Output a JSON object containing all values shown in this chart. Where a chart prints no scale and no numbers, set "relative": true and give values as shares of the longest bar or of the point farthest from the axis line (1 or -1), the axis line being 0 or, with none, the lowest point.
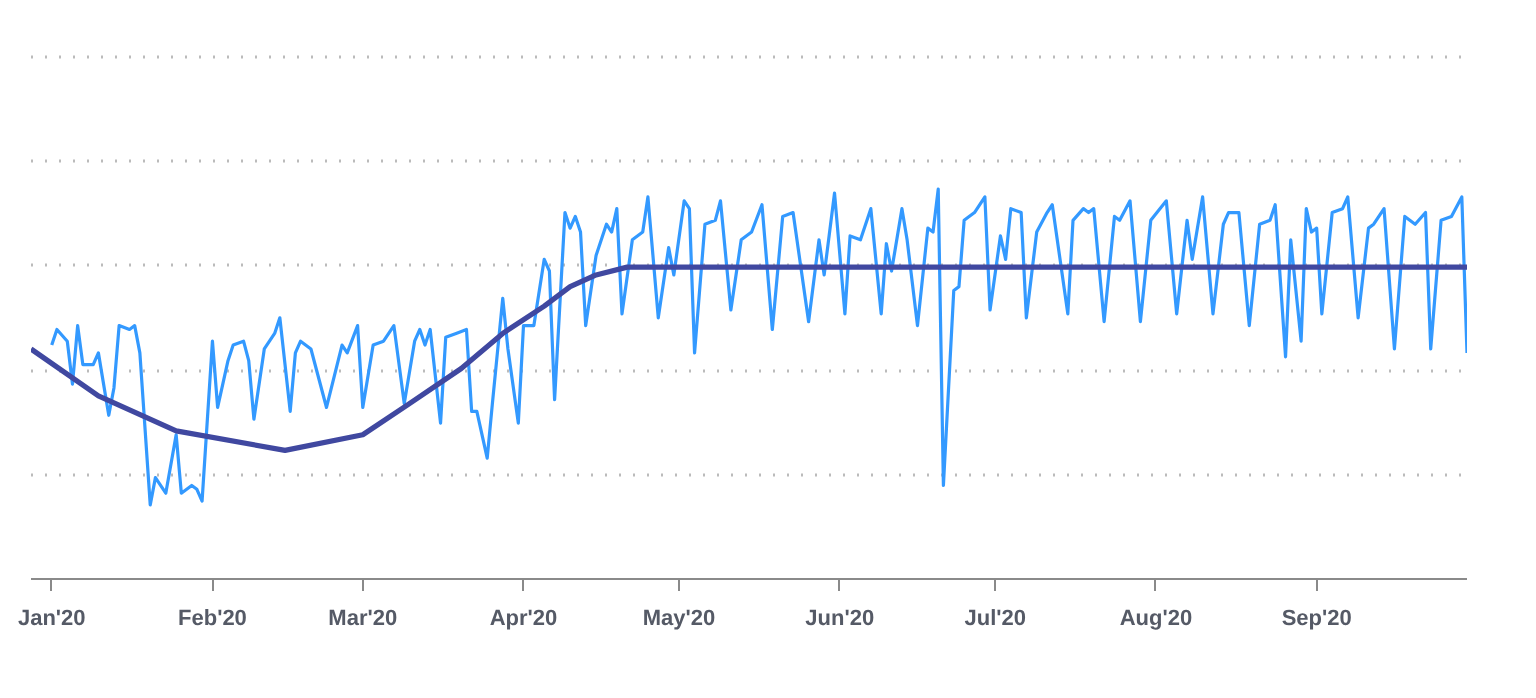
{
  "chart_data": {
    "type": "line",
    "relative": true,
    "grid": "y",
    "line_style": "solid",
    "xlim": [
      "2019-12-28",
      "2020-09-30"
    ],
    "xticks": [
      {
        "value": "2020-01-01",
        "label": "Jan'20"
      },
      {
        "value": "2020-02-01",
        "label": "Feb'20"
      },
      {
        "value": "2020-03-01",
        "label": "Mar'20"
      },
      {
        "value": "2020-04-01",
        "label": "Apr'20"
      },
      {
        "value": "2020-05-01",
        "label": "May'20"
      },
      {
        "value": "2020-06-01",
        "label": "Jun'20"
      },
      {
        "value": "2020-07-01",
        "label": "Jul'20"
      },
      {
        "value": "2020-08-01",
        "label": "Aug'20"
      },
      {
        "value": "2020-09-01",
        "label": "Sep'20"
      }
    ],
    "series": [
      {
        "color": "#3399ff",
        "x": [
          "2020-01-01",
          "2020-01-02",
          "2020-01-04",
          "2020-01-05",
          "2020-01-06",
          "2020-01-07",
          "2020-01-09",
          "2020-01-10",
          "2020-01-12",
          "2020-01-13",
          "2020-01-14",
          "2020-01-16",
          "2020-01-17",
          "2020-01-18",
          "2020-01-20",
          "2020-01-21",
          "2020-01-23",
          "2020-01-25",
          "2020-01-26",
          "2020-01-28",
          "2020-01-29",
          "2020-01-30",
          "2020-02-01",
          "2020-02-02",
          "2020-02-04",
          "2020-02-05",
          "2020-02-07",
          "2020-02-08",
          "2020-02-09",
          "2020-02-11",
          "2020-02-13",
          "2020-02-14",
          "2020-02-16",
          "2020-02-17",
          "2020-02-18",
          "2020-02-20",
          "2020-02-23",
          "2020-02-26",
          "2020-02-27",
          "2020-02-29",
          "2020-03-01",
          "2020-03-03",
          "2020-03-05",
          "2020-03-07",
          "2020-03-09",
          "2020-03-11",
          "2020-03-12",
          "2020-03-13",
          "2020-03-14",
          "2020-03-16",
          "2020-03-17",
          "2020-03-19",
          "2020-03-21",
          "2020-03-22",
          "2020-03-23",
          "2020-03-25",
          "2020-03-26",
          "2020-03-28",
          "2020-03-29",
          "2020-03-31",
          "2020-04-01",
          "2020-04-03",
          "2020-04-05",
          "2020-04-06",
          "2020-04-07",
          "2020-04-09",
          "2020-04-10",
          "2020-04-11",
          "2020-04-12",
          "2020-04-13",
          "2020-04-15",
          "2020-04-17",
          "2020-04-18",
          "2020-04-19",
          "2020-04-20",
          "2020-04-22",
          "2020-04-24",
          "2020-04-25",
          "2020-04-27",
          "2020-04-29",
          "2020-04-30",
          "2020-05-02",
          "2020-05-03",
          "2020-05-04",
          "2020-05-06",
          "2020-05-08",
          "2020-05-09",
          "2020-05-11",
          "2020-05-13",
          "2020-05-15",
          "2020-05-17",
          "2020-05-19",
          "2020-05-21",
          "2020-05-23",
          "2020-05-26",
          "2020-05-28",
          "2020-05-29",
          "2020-05-31",
          "2020-06-02",
          "2020-06-03",
          "2020-06-05",
          "2020-06-07",
          "2020-06-09",
          "2020-06-10",
          "2020-06-11",
          "2020-06-13",
          "2020-06-14",
          "2020-06-16",
          "2020-06-18",
          "2020-06-19",
          "2020-06-20",
          "2020-06-21",
          "2020-06-23",
          "2020-06-24",
          "2020-06-25",
          "2020-06-27",
          "2020-06-29",
          "2020-06-30",
          "2020-07-02",
          "2020-07-03",
          "2020-07-04",
          "2020-07-06",
          "2020-07-07",
          "2020-07-09",
          "2020-07-11",
          "2020-07-12",
          "2020-07-15",
          "2020-07-16",
          "2020-07-18",
          "2020-07-19",
          "2020-07-20",
          "2020-07-22",
          "2020-07-24",
          "2020-07-25",
          "2020-07-27",
          "2020-07-29",
          "2020-07-31",
          "2020-08-03",
          "2020-08-05",
          "2020-08-07",
          "2020-08-08",
          "2020-08-10",
          "2020-08-12",
          "2020-08-14",
          "2020-08-15",
          "2020-08-17",
          "2020-08-19",
          "2020-08-21",
          "2020-08-23",
          "2020-08-24",
          "2020-08-26",
          "2020-08-27",
          "2020-08-29",
          "2020-08-30",
          "2020-08-31",
          "2020-09-01",
          "2020-09-02",
          "2020-09-04",
          "2020-09-06",
          "2020-09-07",
          "2020-09-09",
          "2020-09-11",
          "2020-09-12",
          "2020-09-14",
          "2020-09-16",
          "2020-09-18",
          "2020-09-20",
          "2020-09-22",
          "2020-09-23",
          "2020-09-25",
          "2020-09-27",
          "2020-09-29",
          "2020-09-30"
        ],
        "values": [
          0.6,
          0.64,
          0.61,
          0.5,
          0.65,
          0.55,
          0.55,
          0.58,
          0.42,
          0.49,
          0.65,
          0.64,
          0.65,
          0.58,
          0.19,
          0.26,
          0.22,
          0.37,
          0.22,
          0.24,
          0.23,
          0.2,
          0.61,
          0.44,
          0.56,
          0.6,
          0.61,
          0.56,
          0.41,
          0.59,
          0.63,
          0.67,
          0.43,
          0.58,
          0.61,
          0.59,
          0.44,
          0.6,
          0.58,
          0.65,
          0.44,
          0.6,
          0.61,
          0.65,
          0.45,
          0.61,
          0.64,
          0.6,
          0.64,
          0.4,
          0.62,
          0.63,
          0.64,
          0.43,
          0.43,
          0.31,
          0.45,
          0.72,
          0.59,
          0.4,
          0.65,
          0.65,
          0.82,
          0.79,
          0.46,
          0.94,
          0.9,
          0.93,
          0.89,
          0.65,
          0.83,
          0.91,
          0.89,
          0.95,
          0.68,
          0.87,
          0.89,
          0.98,
          0.67,
          0.85,
          0.78,
          0.97,
          0.95,
          0.58,
          0.91,
          0.92,
          0.97,
          0.69,
          0.87,
          0.89,
          0.96,
          0.64,
          0.93,
          0.94,
          0.66,
          0.87,
          0.78,
          0.99,
          0.68,
          0.88,
          0.87,
          0.95,
          0.68,
          0.86,
          0.79,
          0.95,
          0.87,
          0.65,
          0.9,
          0.89,
          1.0,
          0.24,
          0.74,
          0.75,
          0.92,
          0.94,
          0.98,
          0.69,
          0.88,
          0.82,
          0.95,
          0.94,
          0.67,
          0.89,
          0.94,
          0.96,
          0.68,
          0.92,
          0.95,
          0.94,
          0.95,
          0.66,
          0.93,
          0.92,
          0.97,
          0.66,
          0.92,
          0.97,
          0.68,
          0.92,
          0.82,
          0.98,
          0.68,
          0.91,
          0.94,
          0.94,
          0.65,
          0.91,
          0.92,
          0.96,
          0.57,
          0.87,
          0.61,
          0.95,
          0.89,
          0.9,
          0.68,
          0.94,
          0.95,
          0.98,
          0.67,
          0.9,
          0.91,
          0.95,
          0.59,
          0.93,
          0.91,
          0.94,
          0.59,
          0.92,
          0.93,
          0.98,
          0.58
        ]
      },
      {
        "color": "#4048a0",
        "x": [
          "2019-12-28",
          "2020-01-10",
          "2020-01-25",
          "2020-02-15",
          "2020-03-01",
          "2020-03-10",
          "2020-03-20",
          "2020-03-28",
          "2020-04-05",
          "2020-04-10",
          "2020-04-15",
          "2020-04-21",
          "2020-09-30"
        ],
        "values": [
          0.59,
          0.47,
          0.38,
          0.33,
          0.37,
          0.45,
          0.54,
          0.63,
          0.7,
          0.75,
          0.78,
          0.8,
          0.8
        ]
      }
    ]
  }
}
